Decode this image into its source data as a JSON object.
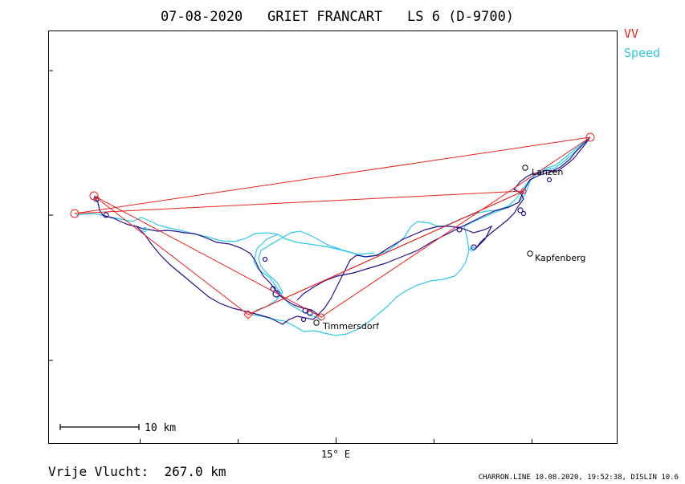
{
  "title": "07-08-2020   GRIET FRANCART   LS 6 (D-9700)",
  "legend": [
    {
      "label": "VV",
      "color": "#e8231e"
    },
    {
      "label": "Speed",
      "color": "#2ec8e8"
    }
  ],
  "scale_bar": {
    "label": "10 km"
  },
  "axis": {
    "x_tick_label": "15° E"
  },
  "towns": [
    {
      "name": "Lanzen"
    },
    {
      "name": "Kapfenberg"
    },
    {
      "name": "Timmersdorf"
    }
  ],
  "footer": {
    "distance_label": "Vrije Vlucht:  267.0 km",
    "credits": "CHARRON.LINE 10.08.2020, 19:52:38, DISLIN 10.6"
  },
  "colors": {
    "frame": "#000000",
    "task_line": "#e8231e",
    "track_dark": "#2a0f8c",
    "track_light": "#2ec8e8"
  }
}
